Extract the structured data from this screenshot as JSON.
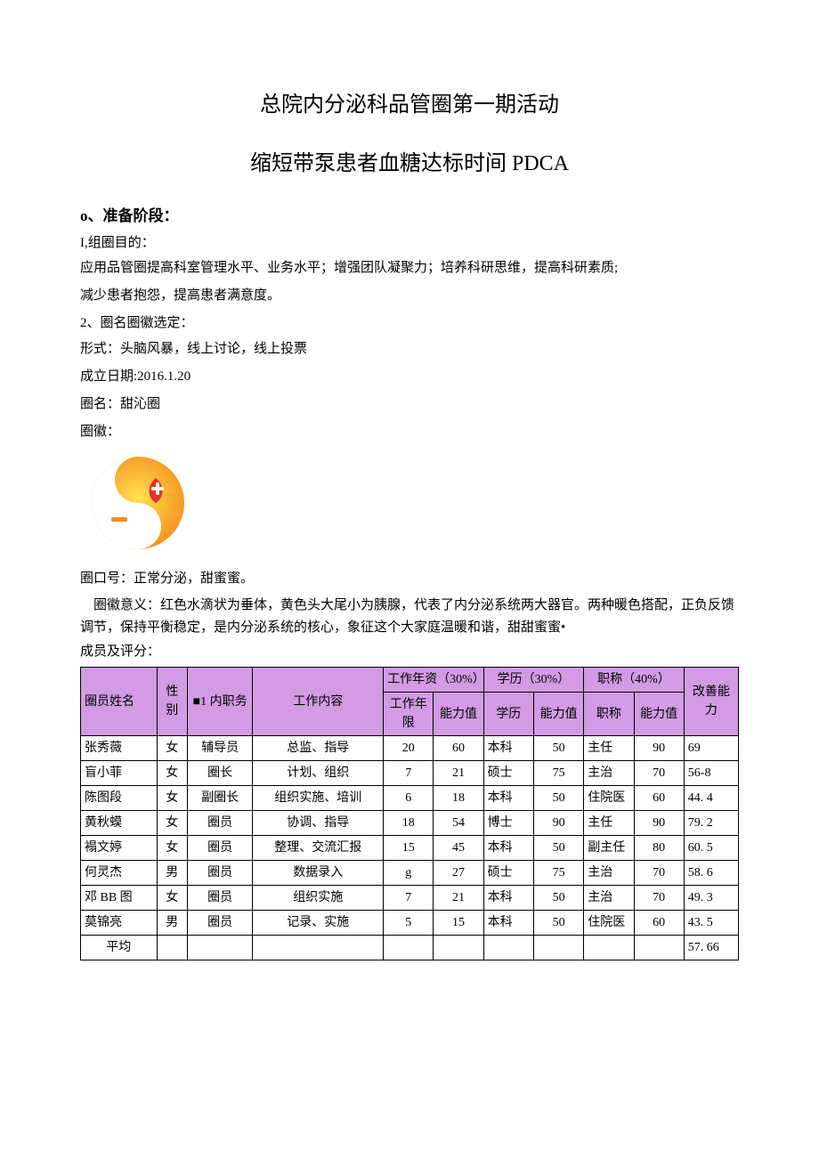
{
  "title1": "总院内分泌科品管圈第一期活动",
  "title2": "缩短带泵患者血糖达标时间 PDCA",
  "stage0_head": "o、准备阶段：",
  "purpose_head": "I,组圈目的：",
  "purpose_p1": "应用品管圈提高科室管理水平、业务水平；增强团队凝聚力；培养科研思维，提高科研素质;",
  "purpose_p2": "减少患者抱怨，提高患者满意度。",
  "naming_head": "2、圈名圈徽选定：",
  "form_line": "形式：头脑风暴，线上讨论，线上投票",
  "date_line": "成立日期:2016.1.20",
  "circle_name_line": "圈名：甜沁圈",
  "badge_label": "圈徽：",
  "slogan_line": "圈口号：正常分泌，甜蜜蜜。",
  "meaning_line": "圈徽意义：红色水滴状为垂体，黄色头大尾小为胰腺，代表了内分泌系统两大器官。两种暖色搭配，正负反馈调节，保持平衡稳定，是内分泌系统的核心，象征这个大家庭温暖和谐，甜甜蜜蜜•",
  "members_label": "成员及评分：",
  "table": {
    "header_bg": "#d29be3",
    "cols": {
      "name": "圈员姓名",
      "gender": "性别",
      "role_group": "■1 内职务",
      "work": "工作内容",
      "years_group": "工作年资（30%）",
      "edu_group": "学历（30%）",
      "title_group": "职称（40%）",
      "improve": "改善能力",
      "years": "工作年限",
      "ability1": "能力值",
      "edu": "学历",
      "ability2": "能力值",
      "title": "职称",
      "ability3": "能力值"
    },
    "rows": [
      {
        "name": "张秀薇",
        "gender": "女",
        "role": "辅导员",
        "work": "总监、指导",
        "years": "20",
        "a1": "60",
        "edu": "本科",
        "a2": "50",
        "title": "主任",
        "a3": "90",
        "improve": "69"
      },
      {
        "name": "盲小菲",
        "gender": "女",
        "role": "圈长",
        "work": "计划、组织",
        "years": "7",
        "a1": "21",
        "edu": "硕士",
        "a2": "75",
        "title": "主治",
        "a3": "70",
        "improve": "56-8"
      },
      {
        "name": "陈图段",
        "gender": "女",
        "role": "副圈长",
        "work": "组织实施、培训",
        "years": "6",
        "a1": "18",
        "edu": "本科",
        "a2": "50",
        "title": "住院医",
        "a3": "60",
        "improve": "44. 4"
      },
      {
        "name": "黄秋蟆",
        "gender": "女",
        "role": "圈员",
        "work": "协调、指导",
        "years": "18",
        "a1": "54",
        "edu": "博士",
        "a2": "90",
        "title": "主任",
        "a3": "90",
        "improve": "79. 2"
      },
      {
        "name": "褟文婷",
        "gender": "女",
        "role": "圈员",
        "work": "整理、交流汇报",
        "years": "15",
        "a1": "45",
        "edu": "本科",
        "a2": "50",
        "title": "副主任",
        "a3": "80",
        "improve": "60. 5"
      },
      {
        "name": "何灵杰",
        "gender": "男",
        "role": "圈员",
        "work": "数据录入",
        "years": "g",
        "a1": "27",
        "edu": "硕士",
        "a2": "75",
        "title": "主治",
        "a3": "70",
        "improve": "58. 6"
      },
      {
        "name": "邓 BB 图",
        "gender": "女",
        "role": "圈员",
        "work": "组织实施",
        "years": "7",
        "a1": "21",
        "edu": "本科",
        "a2": "50",
        "title": "主治",
        "a3": "70",
        "improve": "49. 3"
      },
      {
        "name": "莫锦亮",
        "gender": "男",
        "role": "圈员",
        "work": "记录、实施",
        "years": "5",
        "a1": "15",
        "edu": "本科",
        "a2": "50",
        "title": "住院医",
        "a3": "60",
        "improve": "43. 5"
      }
    ],
    "avg_label": "平均",
    "avg_value": "57. 66"
  },
  "colors": {
    "orange_outer": "#f58a1f",
    "orange_mid": "#f9b233",
    "yellow": "#ffe14d",
    "red": "#e5332a",
    "white": "#ffffff"
  }
}
